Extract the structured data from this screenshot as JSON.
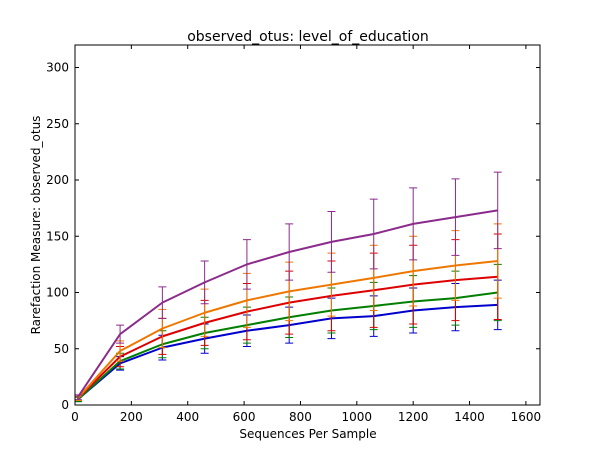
{
  "chart_data": {
    "type": "line",
    "title": "observed_otus: level_of_education",
    "xlabel": "Sequences Per Sample",
    "ylabel": "Rarefaction Measure: observed_otus",
    "xlim": [
      0,
      1650
    ],
    "ylim": [
      0,
      320
    ],
    "xticks": [
      0,
      200,
      400,
      600,
      800,
      1000,
      1200,
      1400,
      1600
    ],
    "yticks": [
      0,
      50,
      100,
      150,
      200,
      250,
      300
    ],
    "grid": false,
    "legend": "none",
    "x": [
      10,
      160,
      310,
      460,
      610,
      760,
      910,
      1060,
      1200,
      1350,
      1500
    ],
    "series": [
      {
        "color": "#0000cc",
        "values": [
          5,
          37,
          51,
          59,
          66,
          71,
          77,
          79,
          84,
          87,
          89
        ],
        "errors": [
          2,
          6,
          11,
          13,
          14,
          16,
          18,
          18,
          20,
          21,
          22
        ]
      },
      {
        "color": "#007f00",
        "values": [
          5,
          39,
          54,
          64,
          71,
          78,
          84,
          88,
          92,
          95,
          100
        ],
        "errors": [
          2,
          7,
          12,
          14,
          16,
          18,
          20,
          21,
          23,
          24,
          25
        ]
      },
      {
        "color": "#dd0000",
        "values": [
          6,
          43,
          61,
          73,
          83,
          91,
          97,
          102,
          107,
          111,
          114
        ],
        "errors": [
          2,
          9,
          16,
          20,
          25,
          28,
          31,
          33,
          35,
          36,
          38
        ]
      },
      {
        "color": "#ee7700",
        "values": [
          6,
          48,
          68,
          82,
          93,
          101,
          107,
          113,
          119,
          124,
          128
        ],
        "errors": [
          2,
          9,
          17,
          21,
          24,
          26,
          28,
          29,
          31,
          31,
          33
        ]
      },
      {
        "color": "#8b2b8b",
        "values": [
          7,
          63,
          91,
          109,
          125,
          136,
          145,
          152,
          161,
          167,
          173
        ],
        "errors": [
          2,
          8,
          14,
          19,
          22,
          25,
          27,
          31,
          32,
          34,
          34
        ]
      }
    ]
  }
}
